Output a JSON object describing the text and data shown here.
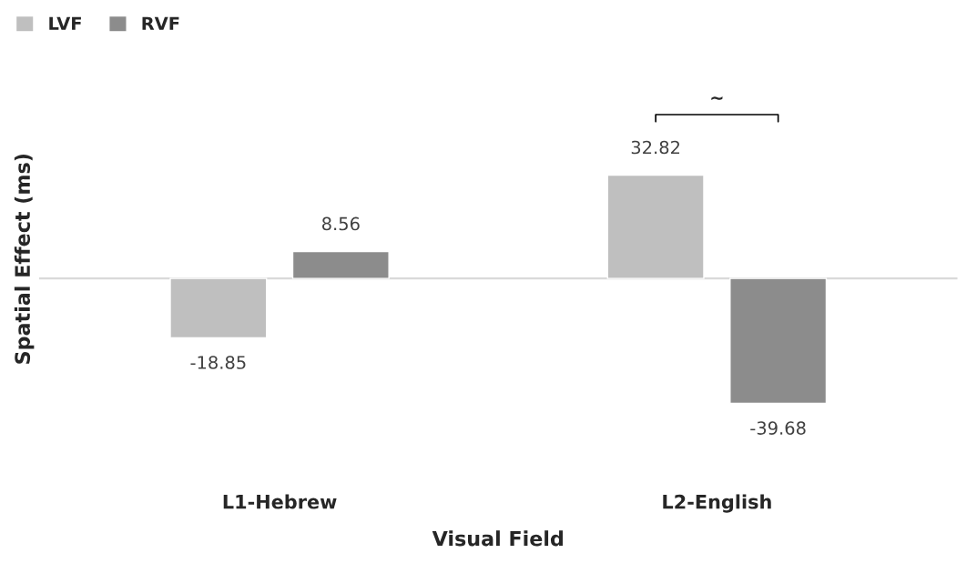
{
  "chart_data": {
    "type": "bar",
    "xlabel": "Visual Field",
    "ylabel": "Spatial Effect (ms)",
    "categories": [
      "L1-Hebrew",
      "L2-English"
    ],
    "series": [
      {
        "name": "LVF",
        "color": "#bfbfbf",
        "values": [
          -18.85,
          32.82
        ]
      },
      {
        "name": "RVF",
        "color": "#8c8c8c",
        "values": [
          8.56,
          -39.68
        ]
      }
    ],
    "data_labels": true,
    "legend": "top left",
    "grid": false,
    "tick_labels": "x",
    "annotations": [
      "~"
    ]
  }
}
